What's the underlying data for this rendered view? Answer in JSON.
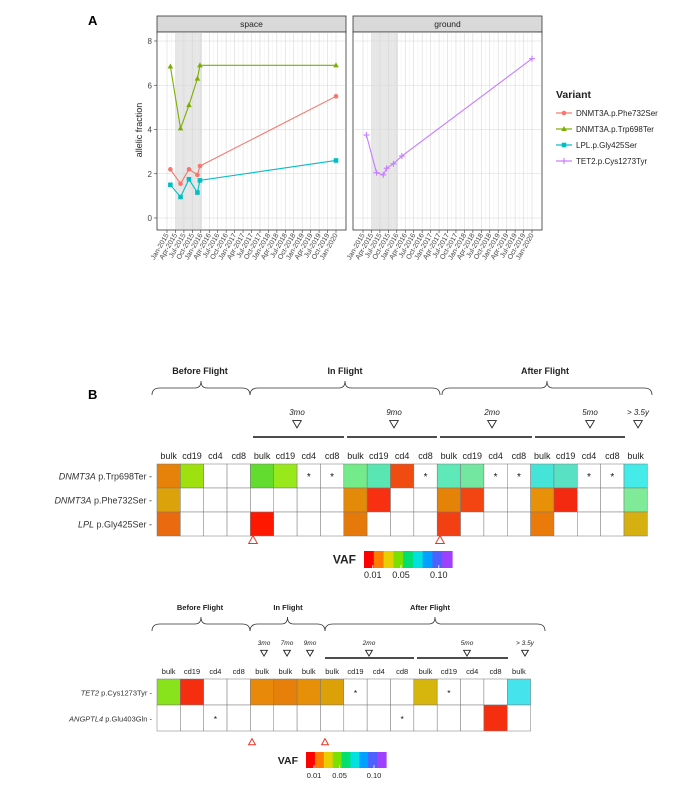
{
  "panel_labels": {
    "a": "A",
    "b": "B"
  },
  "chart_data": [
    {
      "type": "line",
      "ylabel": "allelic fraction",
      "ylim": [
        0,
        8
      ],
      "yticks": [
        0,
        2,
        4,
        6,
        8
      ],
      "grid": true,
      "x_ticks": [
        "Jan-2015",
        "Apr-2015",
        "Jul-2015",
        "Oct-2015",
        "Jan-2016",
        "Apr-2016",
        "Jul-2016",
        "Oct-2016",
        "Jan-2017",
        "Apr-2017",
        "Jul-2017",
        "Oct-2017",
        "Jan-2018",
        "Apr-2018",
        "Jul-2018",
        "Oct-2018",
        "Jan-2019",
        "Apr-2019",
        "Jul-2019",
        "Oct-2019",
        "Jan-2020"
      ],
      "xlim_quarters": [
        0,
        20
      ],
      "shaded_quarters": [
        1.05,
        4.15
      ],
      "facets": [
        "space",
        "ground"
      ],
      "legend": {
        "title": "Variant",
        "position": "right",
        "entries": [
          {
            "name": "DNMT3A.p.Phe732Ser",
            "color": "#f8766d",
            "marker": "circle"
          },
          {
            "name": "DNMT3A.p.Trp698Ter",
            "color": "#7cae00",
            "marker": "triangle"
          },
          {
            "name": "LPL.p.Gly425Ser",
            "color": "#00bfc4",
            "marker": "square"
          },
          {
            "name": "TET2.p.Cys1273Tyr",
            "color": "#c77cff",
            "marker": "plus"
          }
        ]
      },
      "series": [
        {
          "name": "DNMT3A.p.Phe732Ser",
          "facet": 0,
          "x": [
            0.4,
            1.6,
            2.6,
            3.6,
            3.9,
            20
          ],
          "y": [
            2.2,
            1.55,
            2.2,
            1.95,
            2.35,
            5.5
          ]
        },
        {
          "name": "DNMT3A.p.Trp698Ter",
          "facet": 0,
          "x": [
            0.4,
            1.6,
            2.6,
            3.6,
            3.9,
            20
          ],
          "y": [
            6.85,
            4.05,
            5.1,
            6.3,
            6.9,
            6.9
          ]
        },
        {
          "name": "LPL.p.Gly425Ser",
          "facet": 0,
          "x": [
            0.4,
            1.6,
            2.6,
            3.6,
            3.9,
            20
          ],
          "y": [
            1.5,
            0.95,
            1.75,
            1.15,
            1.7,
            2.6
          ]
        },
        {
          "name": "TET2.p.Cys1273Tyr",
          "facet": 1,
          "x": [
            0.4,
            1.6,
            2.4,
            2.8,
            3.6,
            4.6,
            20
          ],
          "y": [
            3.75,
            2.05,
            1.95,
            2.25,
            2.45,
            2.8,
            7.2
          ]
        }
      ]
    },
    {
      "type": "heatmap",
      "color_scale": {
        "title": "VAF",
        "ticks": [
          "0.01",
          "0.05",
          "0.10"
        ]
      },
      "phases": [
        "Before Flight",
        "In Flight",
        "After Flight"
      ],
      "timepoints": [
        "3mo",
        "9mo",
        "2mo",
        "5mo",
        "> 3.5y"
      ],
      "columns": [
        "bulk",
        "cd19",
        "cd4",
        "cd8",
        "bulk",
        "cd19",
        "cd4",
        "cd8",
        "bulk",
        "cd19",
        "cd4",
        "cd8",
        "bulk",
        "cd19",
        "cd4",
        "cd8",
        "bulk",
        "cd19",
        "cd4",
        "cd8",
        "bulk"
      ],
      "rows": [
        {
          "gene": "DNMT3A",
          "change": " p.Trp698Ter",
          "cells": [
            "#e6820a",
            "#9ee10f",
            "",
            "",
            "#62dc2e",
            "#98e81c",
            "*",
            "*",
            "#73eb8b",
            "#5ae6b2",
            "#f04b10",
            "*",
            "#5fe9b9",
            "#73e7a0",
            "*",
            "*",
            "#45e4d8",
            "#58e1c3",
            "*",
            "*",
            "#45ebe8"
          ]
        },
        {
          "gene": "DNMT3A",
          "change": " p.Phe732Ser",
          "cells": [
            "#dca20c",
            "",
            "",
            "",
            "",
            "",
            "",
            "",
            "#e38a08",
            "#f63010",
            "",
            "",
            "#e58208",
            "#f24512",
            "",
            "",
            "#e89108",
            "#f42a10",
            "",
            "",
            "#7feb98"
          ]
        },
        {
          "gene": "LPL",
          "change": " p.Gly425Ser",
          "cells": [
            "#ea6a10",
            "",
            "",
            "",
            "#ff1800",
            "",
            "",
            "",
            "#e57a0a",
            "",
            "",
            "",
            "#f24012",
            "",
            "",
            "",
            "#ea7a0a",
            "",
            "",
            "",
            "#d6b010"
          ]
        }
      ]
    },
    {
      "type": "heatmap",
      "color_scale": {
        "title": "VAF",
        "ticks": [
          "0.01",
          "0.05",
          "0.10"
        ]
      },
      "phases": [
        "Before Flight",
        "In Flight",
        "After Flight"
      ],
      "timepoints": [
        "3mo",
        "7mo",
        "9mo",
        "2mo",
        "5mo",
        "> 3.5y"
      ],
      "columns": [
        "bulk",
        "cd19",
        "cd4",
        "cd8",
        "bulk",
        "bulk",
        "bulk",
        "bulk",
        "cd19",
        "cd4",
        "cd8",
        "bulk",
        "cd19",
        "cd4",
        "cd8",
        "bulk"
      ],
      "rows": [
        {
          "gene": "TET2",
          "change": " p.Cys1273Tyr",
          "cells": [
            "#88e21c",
            "#f52e10",
            "",
            "",
            "#e8890a",
            "#e6800a",
            "#e6900a",
            "#dca008",
            "*",
            "",
            "",
            "#d6b60c",
            "*",
            "",
            "",
            "#45e3ec"
          ]
        },
        {
          "gene": "ANGPTL4",
          "change": " p.Glu403Gln",
          "cells": [
            "",
            "",
            "*",
            "",
            "",
            "",
            "",
            "",
            "",
            "",
            "*",
            "",
            "",
            "",
            "#f52e10",
            ""
          ]
        }
      ]
    }
  ]
}
